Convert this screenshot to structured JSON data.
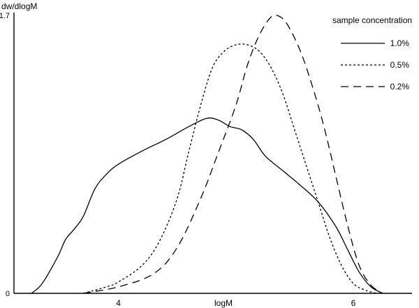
{
  "chart_data": {
    "type": "line",
    "xlabel": "logM",
    "ylabel": "dw/dlogM",
    "xlim": [
      3.11,
      6.5
    ],
    "ylim": [
      0,
      1.7
    ],
    "x_ticks": [
      {
        "value": 4,
        "label": "4"
      },
      {
        "value": 6,
        "label": "6"
      }
    ],
    "y_ticks": [
      {
        "value": 0,
        "label": "0"
      },
      {
        "value": 1.7,
        "label": "1.7"
      }
    ],
    "grid": false,
    "legend": {
      "title": "sample concentration",
      "placement": "top-right"
    },
    "series": [
      {
        "name": "1.0%",
        "dash": "solid",
        "points": [
          [
            3.26,
            0
          ],
          [
            3.35,
            0.06
          ],
          [
            3.48,
            0.22
          ],
          [
            3.55,
            0.33
          ],
          [
            3.62,
            0.39
          ],
          [
            3.7,
            0.47
          ],
          [
            3.8,
            0.64
          ],
          [
            3.9,
            0.73
          ],
          [
            4.0,
            0.79
          ],
          [
            4.2,
            0.87
          ],
          [
            4.4,
            0.94
          ],
          [
            4.6,
            1.02
          ],
          [
            4.75,
            1.07
          ],
          [
            4.85,
            1.06
          ],
          [
            4.95,
            1.02
          ],
          [
            5.05,
            1.0
          ],
          [
            5.15,
            0.94
          ],
          [
            5.25,
            0.84
          ],
          [
            5.4,
            0.75
          ],
          [
            5.55,
            0.66
          ],
          [
            5.7,
            0.56
          ],
          [
            5.85,
            0.41
          ],
          [
            5.95,
            0.27
          ],
          [
            6.05,
            0.13
          ],
          [
            6.15,
            0.04
          ],
          [
            6.25,
            0.0
          ]
        ]
      },
      {
        "name": "0.5%",
        "dash": "dotted",
        "points": [
          [
            3.7,
            0
          ],
          [
            3.9,
            0.04
          ],
          [
            4.0,
            0.07
          ],
          [
            4.2,
            0.17
          ],
          [
            4.35,
            0.32
          ],
          [
            4.5,
            0.58
          ],
          [
            4.6,
            0.87
          ],
          [
            4.7,
            1.15
          ],
          [
            4.8,
            1.38
          ],
          [
            4.9,
            1.48
          ],
          [
            5.0,
            1.52
          ],
          [
            5.1,
            1.52
          ],
          [
            5.2,
            1.48
          ],
          [
            5.3,
            1.38
          ],
          [
            5.4,
            1.22
          ],
          [
            5.5,
            1.0
          ],
          [
            5.6,
            0.78
          ],
          [
            5.7,
            0.56
          ],
          [
            5.8,
            0.34
          ],
          [
            5.9,
            0.17
          ],
          [
            6.0,
            0.06
          ],
          [
            6.1,
            0.02
          ],
          [
            6.2,
            0.0
          ]
        ]
      },
      {
        "name": "0.2%",
        "dash": "dashed",
        "points": [
          [
            3.7,
            0
          ],
          [
            4.0,
            0.04
          ],
          [
            4.3,
            0.12
          ],
          [
            4.5,
            0.28
          ],
          [
            4.7,
            0.58
          ],
          [
            4.85,
            0.86
          ],
          [
            5.0,
            1.15
          ],
          [
            5.1,
            1.4
          ],
          [
            5.2,
            1.58
          ],
          [
            5.3,
            1.69
          ],
          [
            5.38,
            1.69
          ],
          [
            5.45,
            1.63
          ],
          [
            5.55,
            1.48
          ],
          [
            5.65,
            1.27
          ],
          [
            5.75,
            1.02
          ],
          [
            5.85,
            0.72
          ],
          [
            5.95,
            0.42
          ],
          [
            6.05,
            0.17
          ],
          [
            6.15,
            0.05
          ],
          [
            6.25,
            0.0
          ]
        ]
      }
    ]
  }
}
